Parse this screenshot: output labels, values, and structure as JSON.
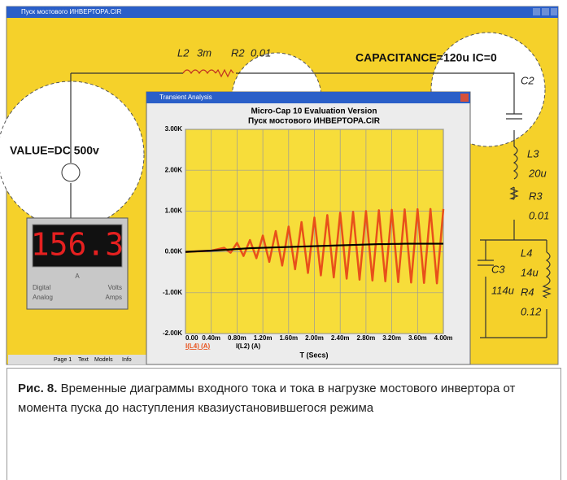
{
  "schematic_window": {
    "title": "Пуск мостового ИНВЕРТОРА.CIR"
  },
  "schematic": {
    "l2": "L2",
    "l2_value": "3m",
    "r2": "R2",
    "r2_value": "0.01",
    "capacitance": "CAPACITANCE=120u IC=0",
    "c2": "C2",
    "source": "VALUE=DC 500v",
    "l3": "L3",
    "l3_value": "20u",
    "r3": "R3",
    "r3_value": "0.01",
    "l4": "L4",
    "l4_value": "14u",
    "r4": "R4",
    "r4_value": "0.12",
    "c3": "C3",
    "c3_value": "114u"
  },
  "meter": {
    "reading": "156.3",
    "symbol": "A",
    "mode_1": "Digital",
    "mode_2": "Analog",
    "unit_1": "Volts",
    "unit_2": "Amps"
  },
  "tabs": [
    "Page 1",
    "Text",
    "Models",
    "Info"
  ],
  "analysis_window": {
    "title": "Transient Analysis"
  },
  "chart_data": {
    "type": "line",
    "title": "Micro-Cap 10 Evaluation Version",
    "subtitle": "Пуск мостового ИНВЕРТОРА.CIR",
    "x_label": "T (Secs)",
    "x": [
      0,
      0.0004,
      0.0006,
      0.0007,
      0.0008,
      0.0009,
      0.001,
      0.0011,
      0.0012,
      0.0013,
      0.0014,
      0.0015,
      0.0016,
      0.0017,
      0.0018,
      0.0019,
      0.002,
      0.0021,
      0.0022,
      0.0023,
      0.0024,
      0.0025,
      0.0026,
      0.0027,
      0.0028,
      0.0029,
      0.003,
      0.0031,
      0.0032,
      0.0033,
      0.0034,
      0.0035,
      0.0036,
      0.0037,
      0.0038,
      0.0039,
      0.004
    ],
    "xlim": [
      0,
      0.004
    ],
    "xticks": [
      {
        "value": 0,
        "label": "0.00"
      },
      {
        "value": 0.0004,
        "label": "0.40m"
      },
      {
        "value": 0.0008,
        "label": "0.80m"
      },
      {
        "value": 0.0012,
        "label": "1.20m"
      },
      {
        "value": 0.0016,
        "label": "1.60m"
      },
      {
        "value": 0.002,
        "label": "2.00m"
      },
      {
        "value": 0.0024,
        "label": "2.40m"
      },
      {
        "value": 0.0028,
        "label": "2.80m"
      },
      {
        "value": 0.0032,
        "label": "3.20m"
      },
      {
        "value": 0.0036,
        "label": "3.60m"
      },
      {
        "value": 0.004,
        "label": "4.00m"
      }
    ],
    "ylim": [
      -2000,
      3000
    ],
    "yticks": [
      {
        "value": -2000,
        "label": "-2.00K"
      },
      {
        "value": -1000,
        "label": "-1.00K"
      },
      {
        "value": 0,
        "label": "0.00K"
      },
      {
        "value": 1000,
        "label": "1.00K"
      },
      {
        "value": 2000,
        "label": "2.00K"
      },
      {
        "value": 3000,
        "label": "3.00K"
      }
    ],
    "grid": true,
    "series": [
      {
        "name": "I(L4) (A)",
        "color": "#e8501a",
        "values": [
          0,
          30,
          100,
          -20,
          220,
          -100,
          290,
          -155,
          400,
          -245,
          510,
          -335,
          620,
          -425,
          730,
          -515,
          840,
          -575,
          900,
          -625,
          960,
          -655,
          980,
          -680,
          1000,
          -700,
          1020,
          -720,
          1030,
          -740,
          1040,
          -750,
          1045,
          -760,
          1050,
          -770,
          1050
        ]
      },
      {
        "name": "I(L2) (A)",
        "color": "#000000",
        "values": [
          0,
          30,
          50,
          60,
          70,
          80,
          90,
          95,
          100,
          105,
          110,
          115,
          120,
          125,
          130,
          135,
          140,
          145,
          150,
          155,
          160,
          165,
          170,
          175,
          180,
          185,
          190,
          190,
          195,
          195,
          200,
          200,
          200,
          200,
          200,
          200,
          200
        ]
      }
    ]
  },
  "caption": {
    "label": "Рис. 8.",
    "text": "Временные диаграммы входного тока и тока в нагрузке мостового инвертора от момента пуска до наступления квазиустановившегося режима"
  }
}
